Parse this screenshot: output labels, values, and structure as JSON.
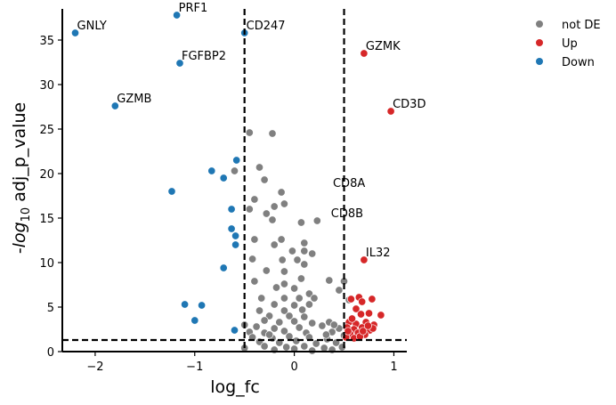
{
  "chart_data": {
    "type": "scatter",
    "title": "",
    "xlabel": "log_fc",
    "ylabel": {
      "prefix": "-",
      "log": "log",
      "base": "10",
      "rest": " adj_p_value"
    },
    "xlim": [
      -2.33,
      1.13
    ],
    "ylim": [
      0,
      38.5
    ],
    "xticks": [
      -2,
      -1,
      0,
      1
    ],
    "xtick_labels": [
      "−2",
      "−1",
      "0",
      "1"
    ],
    "yticks": [
      0,
      5,
      10,
      15,
      20,
      25,
      30,
      35
    ],
    "ytick_labels": [
      "0",
      "5",
      "10",
      "15",
      "20",
      "25",
      "30",
      "35"
    ],
    "grid": false,
    "legend_position": "top-right",
    "thresholds": {
      "vlines": [
        -0.5,
        0.5
      ],
      "hline": 1.3
    },
    "colors": {
      "not DE": "#808080",
      "Up": "#d62728",
      "Down": "#1f77b4"
    },
    "series": [
      {
        "name": "not DE",
        "points": [
          [
            -0.45,
            24.6
          ],
          [
            -0.22,
            24.5
          ],
          [
            -0.35,
            20.7
          ],
          [
            -0.3,
            19.3
          ],
          [
            -0.13,
            17.9
          ],
          [
            -0.6,
            20.3
          ],
          [
            -0.4,
            17.1
          ],
          [
            -0.2,
            16.3
          ],
          [
            -0.1,
            16.6
          ],
          [
            -0.45,
            16.0
          ],
          [
            -0.28,
            15.5
          ],
          [
            -0.22,
            14.8
          ],
          [
            0.07,
            14.5
          ],
          [
            0.23,
            14.7
          ],
          [
            -0.4,
            12.6
          ],
          [
            -0.2,
            12.0
          ],
          [
            -0.13,
            12.6
          ],
          [
            0.1,
            12.2
          ],
          [
            -0.02,
            11.3
          ],
          [
            0.1,
            11.3
          ],
          [
            0.18,
            11.0
          ],
          [
            -0.42,
            10.4
          ],
          [
            -0.12,
            10.3
          ],
          [
            0.03,
            10.3
          ],
          [
            0.1,
            9.8
          ],
          [
            -0.28,
            9.1
          ],
          [
            -0.1,
            9.0
          ],
          [
            0.07,
            8.2
          ],
          [
            0.35,
            8.0
          ],
          [
            0.5,
            7.9
          ],
          [
            -0.4,
            7.9
          ],
          [
            -0.18,
            7.2
          ],
          [
            -0.1,
            7.6
          ],
          [
            0.0,
            7.1
          ],
          [
            0.15,
            6.5
          ],
          [
            0.45,
            6.9
          ],
          [
            -0.33,
            6.0
          ],
          [
            -0.1,
            6.0
          ],
          [
            0.05,
            6.0
          ],
          [
            0.2,
            6.0
          ],
          [
            0.55,
            5.8
          ],
          [
            -0.2,
            5.3
          ],
          [
            0.0,
            5.2
          ],
          [
            0.15,
            5.3
          ],
          [
            -0.35,
            4.6
          ],
          [
            -0.1,
            4.6
          ],
          [
            0.08,
            4.7
          ],
          [
            -0.25,
            4.0
          ],
          [
            -0.05,
            4.0
          ],
          [
            0.1,
            3.9
          ],
          [
            -0.3,
            3.5
          ],
          [
            -0.15,
            3.3
          ],
          [
            0.0,
            3.4
          ],
          [
            0.18,
            3.2
          ],
          [
            0.35,
            3.3
          ],
          [
            -0.5,
            3.0
          ],
          [
            -0.38,
            2.8
          ],
          [
            -0.2,
            2.6
          ],
          [
            0.05,
            2.7
          ],
          [
            0.28,
            2.9
          ],
          [
            0.45,
            2.6
          ],
          [
            -0.45,
            2.2
          ],
          [
            -0.3,
            2.1
          ],
          [
            -0.1,
            2.3
          ],
          [
            0.12,
            2.1
          ],
          [
            0.38,
            2.2
          ],
          [
            -0.42,
            1.6
          ],
          [
            -0.22,
            1.5
          ],
          [
            -0.05,
            1.7
          ],
          [
            0.15,
            1.6
          ],
          [
            0.33,
            1.4
          ],
          [
            -0.35,
            1.1
          ],
          [
            -0.15,
            1.0
          ],
          [
            0.02,
            1.2
          ],
          [
            0.22,
            0.9
          ],
          [
            0.42,
            1.0
          ],
          [
            -0.3,
            0.6
          ],
          [
            -0.08,
            0.5
          ],
          [
            0.1,
            0.6
          ],
          [
            0.3,
            0.4
          ],
          [
            -0.2,
            0.2
          ],
          [
            0.0,
            0.3
          ],
          [
            0.18,
            0.1
          ],
          [
            0.38,
            0.2
          ],
          [
            0.5,
            1.8
          ],
          [
            0.48,
            0.5
          ],
          [
            -0.5,
            0.4
          ],
          [
            0.4,
            3.0
          ],
          [
            0.32,
            1.9
          ],
          [
            -0.25,
            1.9
          ]
        ]
      },
      {
        "name": "Up",
        "points": [
          [
            0.7,
            33.5
          ],
          [
            0.97,
            27.0
          ],
          [
            0.7,
            10.3
          ],
          [
            0.57,
            5.9
          ],
          [
            0.65,
            6.1
          ],
          [
            0.78,
            5.9
          ],
          [
            0.68,
            5.6
          ],
          [
            0.62,
            4.8
          ],
          [
            0.67,
            4.2
          ],
          [
            0.75,
            4.3
          ],
          [
            0.87,
            4.1
          ],
          [
            0.55,
            3.3
          ],
          [
            0.62,
            3.1
          ],
          [
            0.72,
            3.3
          ],
          [
            0.8,
            3.0
          ],
          [
            0.53,
            2.7
          ],
          [
            0.6,
            2.5
          ],
          [
            0.68,
            2.7
          ],
          [
            0.76,
            2.4
          ],
          [
            0.56,
            2.0
          ],
          [
            0.64,
            2.1
          ],
          [
            0.71,
            1.9
          ],
          [
            0.52,
            1.6
          ],
          [
            0.6,
            1.5
          ],
          [
            0.66,
            1.7
          ],
          [
            0.79,
            2.6
          ],
          [
            0.58,
            3.7
          ],
          [
            0.54,
            2.3
          ],
          [
            0.69,
            2.3
          ],
          [
            0.74,
            2.9
          ]
        ]
      },
      {
        "name": "Down",
        "points": [
          [
            -2.2,
            35.8
          ],
          [
            -1.18,
            37.8
          ],
          [
            -1.15,
            32.4
          ],
          [
            -1.8,
            27.6
          ],
          [
            -0.5,
            35.8
          ],
          [
            -0.58,
            21.5
          ],
          [
            -0.83,
            20.3
          ],
          [
            -0.71,
            19.5
          ],
          [
            -1.23,
            18.0
          ],
          [
            -0.63,
            16.0
          ],
          [
            -0.63,
            13.8
          ],
          [
            -0.59,
            13.0
          ],
          [
            -0.59,
            12.0
          ],
          [
            -0.71,
            9.4
          ],
          [
            -1.1,
            5.3
          ],
          [
            -0.93,
            5.2
          ],
          [
            -1.0,
            3.5
          ],
          [
            -0.6,
            2.4
          ]
        ]
      }
    ],
    "annotations": [
      {
        "label": "GNLY",
        "x": -2.2,
        "y": 35.8
      },
      {
        "label": "PRF1",
        "x": -1.18,
        "y": 37.8
      },
      {
        "label": "FGFBP2",
        "x": -1.15,
        "y": 32.4
      },
      {
        "label": "CD247",
        "x": -0.5,
        "y": 35.8
      },
      {
        "label": "GZMB",
        "x": -1.8,
        "y": 27.6
      },
      {
        "label": "GZMK",
        "x": 0.7,
        "y": 33.5
      },
      {
        "label": "CD3D",
        "x": 0.97,
        "y": 27.0
      },
      {
        "label": "CD8A",
        "x": 0.37,
        "y": 18.1
      },
      {
        "label": "CD8B",
        "x": 0.35,
        "y": 14.7
      },
      {
        "label": "IL32",
        "x": 0.7,
        "y": 10.3
      }
    ],
    "legend": [
      "not DE",
      "Up",
      "Down"
    ]
  }
}
